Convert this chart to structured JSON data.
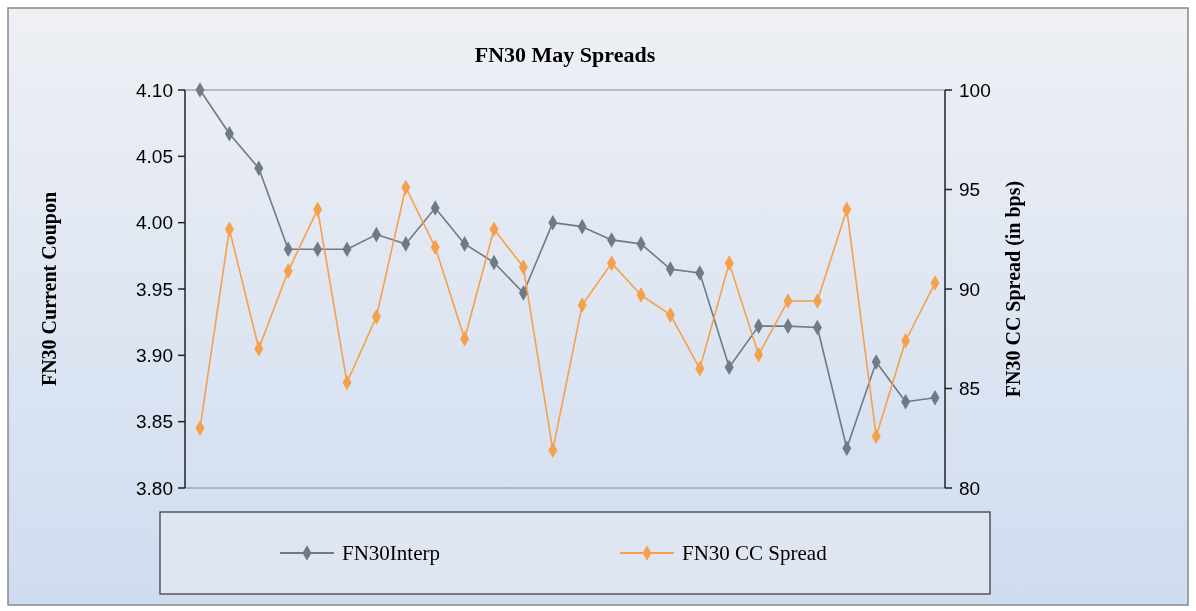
{
  "chart_data": {
    "type": "line",
    "title": "FN30 May Spreads",
    "ylabel": "FN30 Current Coupon",
    "y2label": "FN30 CC Spread (in bps)",
    "categories": [
      null,
      null,
      null,
      null,
      null,
      null,
      null,
      null,
      null,
      null,
      null,
      null,
      null,
      null,
      null,
      null,
      null,
      null,
      null,
      null,
      null,
      null,
      null,
      null,
      null,
      null
    ],
    "series": [
      {
        "name": "FN30Interp",
        "color": "#6f7a86",
        "values": [
          4.1,
          4.067,
          4.041,
          3.98,
          3.98,
          3.98,
          3.991,
          3.984,
          4.011,
          3.984,
          3.97,
          3.947,
          4.0,
          3.997,
          3.987,
          3.984,
          3.965,
          3.962,
          3.891,
          3.922,
          3.922,
          3.921,
          3.83,
          3.895,
          3.865,
          3.868
        ]
      },
      {
        "name": "FN30 CC Spread",
        "color": "#f5a04a",
        "axis": "y2",
        "values": [
          83.0,
          93.0,
          87.0,
          90.9,
          94.0,
          85.3,
          88.6,
          95.1,
          92.1,
          87.5,
          93.0,
          91.1,
          81.9,
          89.2,
          91.3,
          89.7,
          88.7,
          86.0,
          91.3,
          86.7,
          89.4,
          89.4,
          94.0,
          82.6,
          87.4,
          90.3
        ]
      }
    ],
    "ylim": [
      3.8,
      4.1
    ],
    "yticks": [
      {
        "value": 3.8,
        "label": "3.80"
      },
      {
        "value": 3.85,
        "label": "3.85"
      },
      {
        "value": 3.9,
        "label": "3.90"
      },
      {
        "value": 3.95,
        "label": "3.95"
      },
      {
        "value": 4.0,
        "label": "4.00"
      },
      {
        "value": 4.05,
        "label": "4.05"
      },
      {
        "value": 4.1,
        "label": "4.10"
      }
    ],
    "y2lim": [
      80,
      100
    ],
    "y2ticks": [
      80,
      85,
      90,
      95,
      100
    ],
    "legend": "bottom",
    "marker": "diamond",
    "line_style": "solid"
  }
}
